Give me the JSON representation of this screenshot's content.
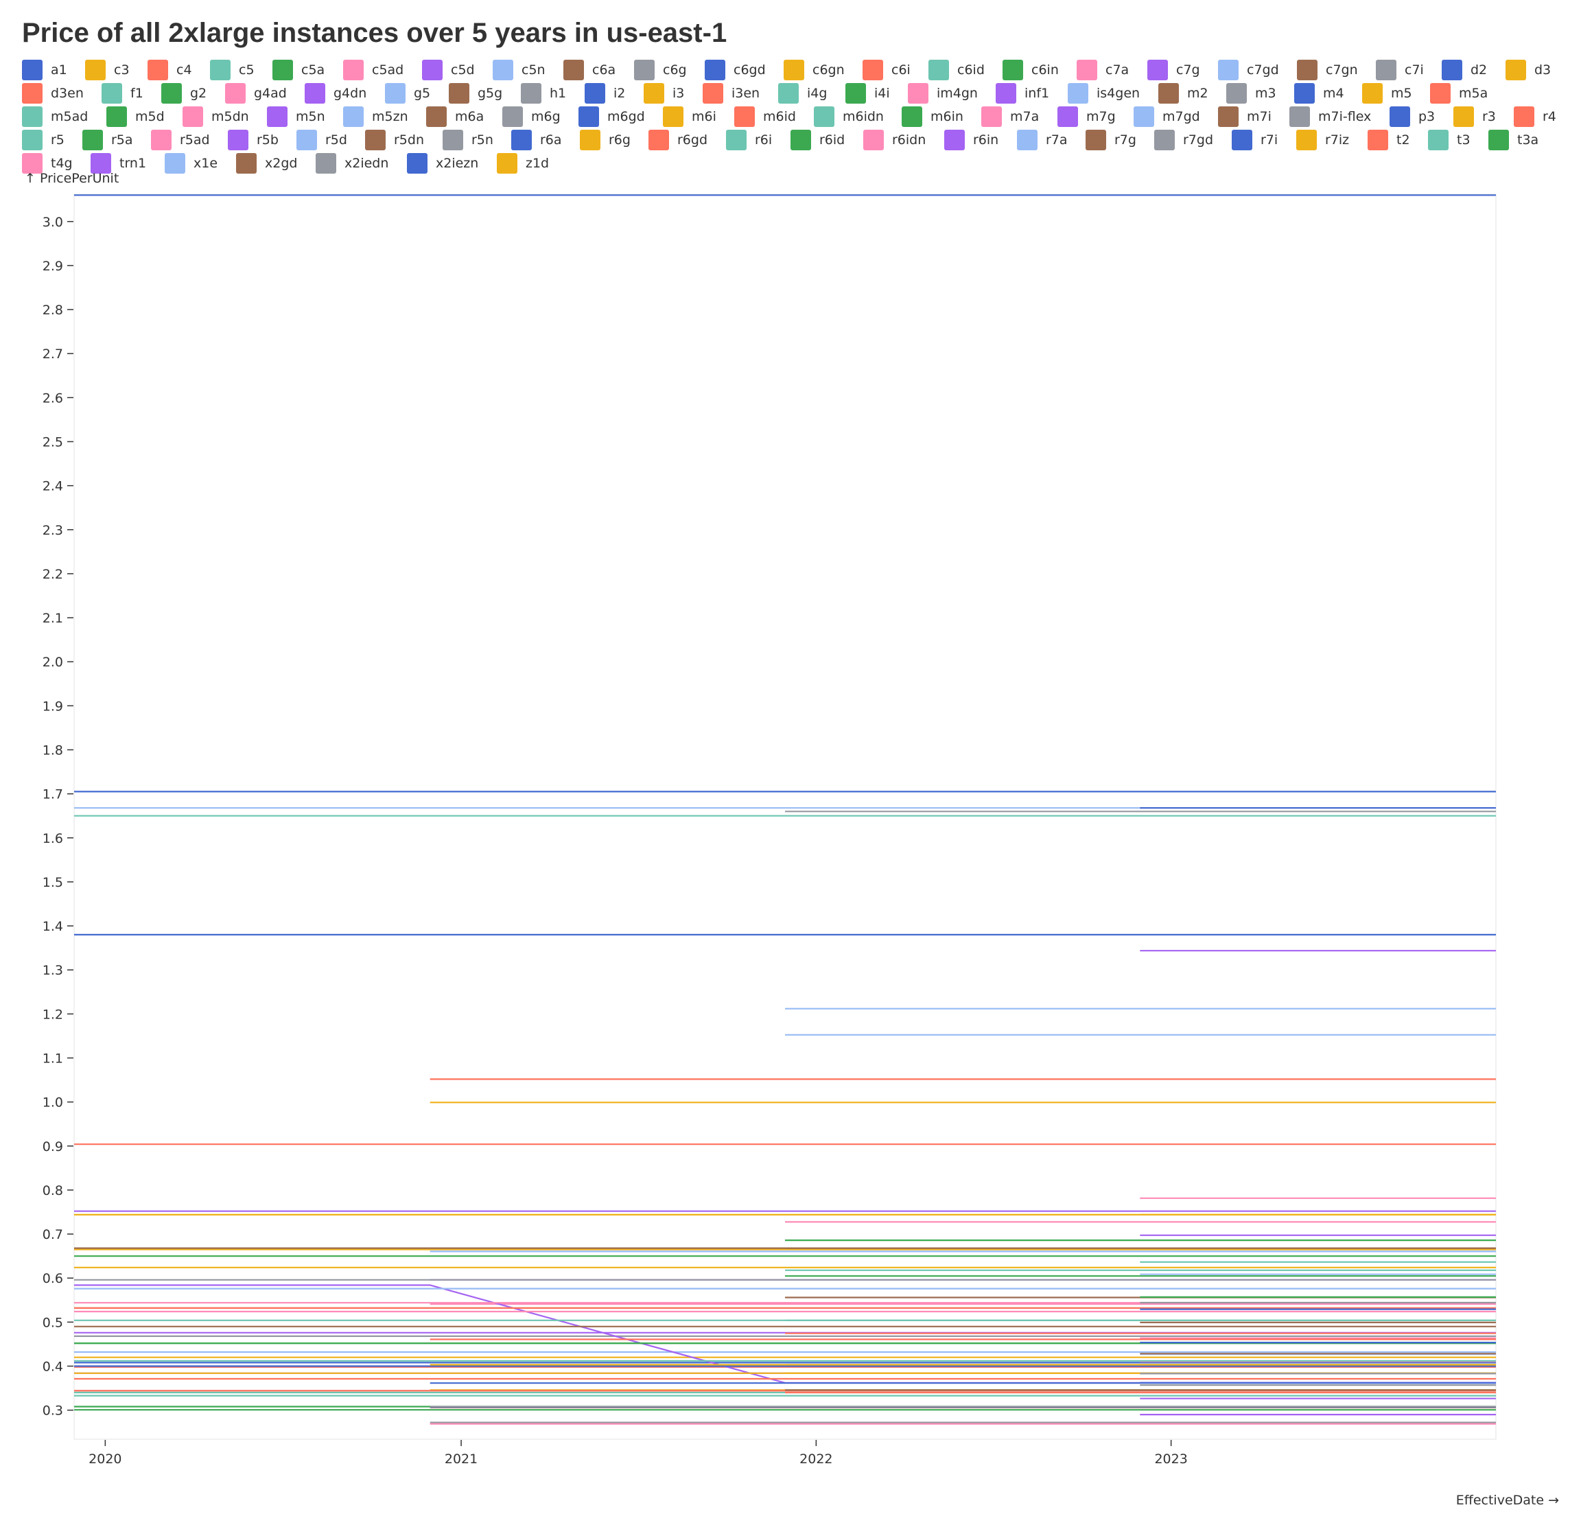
{
  "chart_data": {
    "type": "line",
    "title": "Price of all 2xlarge instances over 5 years in us-east-1",
    "ylabel": "↑ PricePerUnit",
    "xlabel": "EffectiveDate →",
    "x_ticks": [
      "2020",
      "2021",
      "2022",
      "2023"
    ],
    "y_ticks": [
      "3.0",
      "2.9",
      "2.8",
      "2.7",
      "2.6",
      "2.5",
      "2.4",
      "2.3",
      "2.2",
      "2.1",
      "2.0",
      "1.9",
      "1.8",
      "1.7",
      "1.6",
      "1.5",
      "1.4",
      "1.3",
      "1.2",
      "1.1",
      "1.0",
      "0.9",
      "0.8",
      "0.7",
      "0.6",
      "0.5",
      "0.4",
      "0.3"
    ],
    "x_range": [
      "2019-11-30",
      "2023-12-01"
    ],
    "ylim": [
      0.234,
      3.062
    ],
    "grid": false,
    "legend_placement": "top",
    "palette": [
      "#4269d0",
      "#efb118",
      "#ff725c",
      "#6cc5b0",
      "#3ca951",
      "#ff8ab7",
      "#a463f2",
      "#97bbf5",
      "#9c6b4e",
      "#9498a0"
    ],
    "legend": [
      "a1",
      "c3",
      "c4",
      "c5",
      "c5a",
      "c5ad",
      "c5d",
      "c5n",
      "c6a",
      "c6g",
      "c6gd",
      "c6gn",
      "c6i",
      "c6id",
      "c6in",
      "c7a",
      "c7g",
      "c7gd",
      "c7gn",
      "c7i",
      "d2",
      "d3",
      "d3en",
      "f1",
      "g2",
      "g4ad",
      "g4dn",
      "g5",
      "g5g",
      "h1",
      "i2",
      "i3",
      "i3en",
      "i4g",
      "i4i",
      "im4gn",
      "inf1",
      "is4gen",
      "m2",
      "m3",
      "m4",
      "m5",
      "m5a",
      "m5ad",
      "m5d",
      "m5dn",
      "m5n",
      "m5zn",
      "m6a",
      "m6g",
      "m6gd",
      "m6i",
      "m6id",
      "m6idn",
      "m6in",
      "m7a",
      "m7g",
      "m7gd",
      "m7i",
      "m7i-flex",
      "p3",
      "r3",
      "r4",
      "r5",
      "r5a",
      "r5ad",
      "r5b",
      "r5d",
      "r5dn",
      "r5n",
      "r6a",
      "r6g",
      "r6gd",
      "r6i",
      "r6id",
      "r6idn",
      "r6in",
      "r7a",
      "r7g",
      "r7gd",
      "r7i",
      "r7iz",
      "t2",
      "t3",
      "t3a",
      "t4g",
      "trn1",
      "x1e",
      "x2gd",
      "x2iedn",
      "x2iezn",
      "z1d"
    ],
    "series_note": "",
    "series": [
      {
        "name": "a1",
        "x": [
          "2019-11-30",
          "2023-12-01"
        ],
        "y": [
          0.408,
          0.408
        ]
      },
      {
        "name": "c3",
        "x": [
          "2019-11-30",
          "2023-12-01"
        ],
        "y": [
          0.42,
          0.42
        ]
      },
      {
        "name": "c4",
        "x": [
          "2019-11-30",
          "2023-12-01"
        ],
        "y": [
          0.398,
          0.398
        ]
      },
      {
        "name": "c5",
        "x": [
          "2019-11-30",
          "2023-12-01"
        ],
        "y": [
          0.34,
          0.34
        ]
      },
      {
        "name": "c5a",
        "x": [
          "2019-11-30",
          "2023-12-01"
        ],
        "y": [
          0.308,
          0.308
        ]
      },
      {
        "name": "c5ad",
        "x": [
          "2019-11-30",
          "2023-12-01"
        ],
        "y": [
          0.344,
          0.344
        ]
      },
      {
        "name": "c5d",
        "x": [
          "2019-11-30",
          "2023-12-01"
        ],
        "y": [
          0.384,
          0.384
        ]
      },
      {
        "name": "c5n",
        "x": [
          "2019-11-30",
          "2023-12-01"
        ],
        "y": [
          0.432,
          0.432
        ]
      },
      {
        "name": "c6a",
        "x": [
          "2020-11-30",
          "2023-12-01"
        ],
        "y": [
          0.306,
          0.306
        ]
      },
      {
        "name": "c6g",
        "x": [
          "2020-11-30",
          "2023-12-01"
        ],
        "y": [
          0.272,
          0.272
        ]
      },
      {
        "name": "c6gd",
        "x": [
          "2020-11-30",
          "2023-12-01"
        ],
        "y": [
          0.3072,
          0.3072
        ]
      },
      {
        "name": "c6gn",
        "x": [
          "2020-11-30",
          "2023-12-01"
        ],
        "y": [
          0.3456,
          0.3456
        ]
      },
      {
        "name": "c6i",
        "x": [
          "2021-11-30",
          "2023-12-01"
        ],
        "y": [
          0.34,
          0.34
        ]
      },
      {
        "name": "c6id",
        "x": [
          "2021-11-30",
          "2023-12-01"
        ],
        "y": [
          0.4032,
          0.4032
        ]
      },
      {
        "name": "c6in",
        "x": [
          "2022-11-30",
          "2023-12-01"
        ],
        "y": [
          0.4536,
          0.4536
        ]
      },
      {
        "name": "c7a",
        "x": [
          "2022-11-30",
          "2023-12-01"
        ],
        "y": [
          0.41056,
          0.41056
        ]
      },
      {
        "name": "c7g",
        "x": [
          "2022-11-30",
          "2023-12-01"
        ],
        "y": [
          0.29,
          0.29
        ]
      },
      {
        "name": "c7gd",
        "x": [
          "2022-11-30",
          "2023-12-01"
        ],
        "y": [
          0.3629,
          0.3629
        ]
      },
      {
        "name": "c7gn",
        "x": [
          "2022-11-30",
          "2023-12-01"
        ],
        "y": [
          0.4992,
          0.4992
        ]
      },
      {
        "name": "c7i",
        "x": [
          "2022-11-30",
          "2023-12-01"
        ],
        "y": [
          0.357,
          0.357
        ]
      },
      {
        "name": "d2",
        "x": [
          "2019-11-30",
          "2023-12-01"
        ],
        "y": [
          1.38,
          1.38
        ]
      },
      {
        "name": "d3",
        "x": [
          "2020-11-30",
          "2023-12-01"
        ],
        "y": [
          0.999,
          0.999
        ]
      },
      {
        "name": "d3en",
        "x": [
          "2020-11-30",
          "2023-12-01"
        ],
        "y": [
          1.0518,
          1.0518
        ]
      },
      {
        "name": "f1",
        "x": [
          "2019-11-30",
          "2023-12-01"
        ],
        "y": [
          1.65,
          1.65
        ]
      },
      {
        "name": "g2",
        "x": [
          "2019-11-30",
          "2023-12-01"
        ],
        "y": [
          0.65,
          0.65
        ]
      },
      {
        "name": "g4ad",
        "x": [
          "2020-11-30",
          "2023-12-01"
        ],
        "y": [
          0.541,
          0.541
        ]
      },
      {
        "name": "g4dn",
        "x": [
          "2019-11-30",
          "2023-12-01"
        ],
        "y": [
          0.752,
          0.752
        ]
      },
      {
        "name": "g5",
        "x": [
          "2021-11-30",
          "2023-12-01"
        ],
        "y": [
          1.212,
          1.212
        ]
      },
      {
        "name": "g5g",
        "x": [
          "2021-11-30",
          "2023-12-01"
        ],
        "y": [
          0.556,
          0.556
        ]
      },
      {
        "name": "h1",
        "x": [
          "2019-11-30",
          "2023-12-01"
        ],
        "y": [
          0.468,
          0.468
        ]
      },
      {
        "name": "i2",
        "x": [
          "2019-11-30",
          "2023-12-01"
        ],
        "y": [
          1.705,
          1.705
        ]
      },
      {
        "name": "i3",
        "x": [
          "2019-11-30",
          "2023-12-01"
        ],
        "y": [
          0.624,
          0.624
        ]
      },
      {
        "name": "i3en",
        "x": [
          "2019-11-30",
          "2023-12-01"
        ],
        "y": [
          0.904,
          0.904
        ]
      },
      {
        "name": "i4g",
        "x": [
          "2021-11-30",
          "2023-12-01"
        ],
        "y": [
          0.6178,
          0.6178
        ]
      },
      {
        "name": "i4i",
        "x": [
          "2021-11-30",
          "2023-12-01"
        ],
        "y": [
          0.686,
          0.686
        ]
      },
      {
        "name": "im4gn",
        "x": [
          "2021-11-30",
          "2023-12-01"
        ],
        "y": [
          0.7276,
          0.7276
        ]
      },
      {
        "name": "inf1",
        "x": [
          "2019-11-30",
          "2020-11-30",
          "2021-11-30",
          "2023-12-01"
        ],
        "y": [
          0.584,
          0.584,
          0.362,
          0.362
        ]
      },
      {
        "name": "is4gen",
        "x": [
          "2021-11-30",
          "2023-12-01"
        ],
        "y": [
          1.1526,
          1.1526
        ]
      },
      {
        "name": "m2",
        "x": [
          "2019-11-30",
          "2023-12-01"
        ],
        "y": [
          0.49,
          0.49
        ]
      },
      {
        "name": "m3",
        "x": [
          "2019-11-30",
          "2023-12-01"
        ],
        "y": [
          0.532,
          0.532
        ]
      },
      {
        "name": "m4",
        "x": [
          "2019-11-30",
          "2023-12-01"
        ],
        "y": [
          0.4,
          0.4
        ]
      },
      {
        "name": "m5",
        "x": [
          "2019-11-30",
          "2023-12-01"
        ],
        "y": [
          0.384,
          0.384
        ]
      },
      {
        "name": "m5a",
        "x": [
          "2019-11-30",
          "2023-12-01"
        ],
        "y": [
          0.344,
          0.344
        ]
      },
      {
        "name": "m5ad",
        "x": [
          "2019-11-30",
          "2023-12-01"
        ],
        "y": [
          0.412,
          0.412
        ]
      },
      {
        "name": "m5d",
        "x": [
          "2019-11-30",
          "2023-12-01"
        ],
        "y": [
          0.452,
          0.452
        ]
      },
      {
        "name": "m5dn",
        "x": [
          "2019-11-30",
          "2023-12-01"
        ],
        "y": [
          0.544,
          0.544
        ]
      },
      {
        "name": "m5n",
        "x": [
          "2019-11-30",
          "2023-12-01"
        ],
        "y": [
          0.476,
          0.476
        ]
      },
      {
        "name": "m5zn",
        "x": [
          "2020-11-30",
          "2023-12-01"
        ],
        "y": [
          0.6606,
          0.6606
        ]
      },
      {
        "name": "m6a",
        "x": [
          "2021-11-30",
          "2023-12-01"
        ],
        "y": [
          0.3456,
          0.3456
        ]
      },
      {
        "name": "m6g",
        "x": [
          "2020-11-30",
          "2023-12-01"
        ],
        "y": [
          0.308,
          0.308
        ]
      },
      {
        "name": "m6gd",
        "x": [
          "2020-11-30",
          "2023-12-01"
        ],
        "y": [
          0.3616,
          0.3616
        ]
      },
      {
        "name": "m6i",
        "x": [
          "2021-11-30",
          "2023-12-01"
        ],
        "y": [
          0.384,
          0.384
        ]
      },
      {
        "name": "m6id",
        "x": [
          "2021-11-30",
          "2023-12-01"
        ],
        "y": [
          0.4746,
          0.4746
        ]
      },
      {
        "name": "m6idn",
        "x": [
          "2022-11-30",
          "2023-12-01"
        ],
        "y": [
          0.6365,
          0.6365
        ]
      },
      {
        "name": "m6in",
        "x": [
          "2022-11-30",
          "2023-12-01"
        ],
        "y": [
          0.5569,
          0.5569
        ]
      },
      {
        "name": "m7a",
        "x": [
          "2022-11-30",
          "2023-12-01"
        ],
        "y": [
          0.4637,
          0.4637
        ]
      },
      {
        "name": "m7g",
        "x": [
          "2022-11-30",
          "2023-12-01"
        ],
        "y": [
          0.3264,
          0.3264
        ]
      },
      {
        "name": "m7gd",
        "x": [
          "2022-11-30",
          "2023-12-01"
        ],
        "y": [
          0.427,
          0.427
        ]
      },
      {
        "name": "m7i",
        "x": [
          "2022-11-30",
          "2023-12-01"
        ],
        "y": [
          0.4032,
          0.4032
        ]
      },
      {
        "name": "m7i-flex",
        "x": [
          "2022-11-30",
          "2023-12-01"
        ],
        "y": [
          0.383,
          0.383
        ]
      },
      {
        "name": "p3",
        "x": [
          "2019-11-30",
          "2023-12-01"
        ],
        "y": [
          3.06,
          3.06
        ]
      },
      {
        "name": "r3",
        "x": [
          "2019-11-30",
          "2023-12-01"
        ],
        "y": [
          0.665,
          0.665
        ]
      },
      {
        "name": "r4",
        "x": [
          "2019-11-30",
          "2023-12-01"
        ],
        "y": [
          0.532,
          0.532
        ]
      },
      {
        "name": "r5",
        "x": [
          "2019-11-30",
          "2023-12-01"
        ],
        "y": [
          0.504,
          0.504
        ]
      },
      {
        "name": "r5a",
        "x": [
          "2019-11-30",
          "2023-12-01"
        ],
        "y": [
          0.452,
          0.452
        ]
      },
      {
        "name": "r5ad",
        "x": [
          "2019-11-30",
          "2023-12-01"
        ],
        "y": [
          0.524,
          0.524
        ]
      },
      {
        "name": "r5b",
        "x": [
          "2020-11-30",
          "2023-12-01"
        ],
        "y": [
          0.596,
          0.596
        ]
      },
      {
        "name": "r5d",
        "x": [
          "2019-11-30",
          "2023-12-01"
        ],
        "y": [
          0.576,
          0.576
        ]
      },
      {
        "name": "r5dn",
        "x": [
          "2019-11-30",
          "2023-12-01"
        ],
        "y": [
          0.668,
          0.668
        ]
      },
      {
        "name": "r5n",
        "x": [
          "2019-11-30",
          "2023-12-01"
        ],
        "y": [
          0.596,
          0.596
        ]
      },
      {
        "name": "r6a",
        "x": [
          "2022-11-30",
          "2023-12-01"
        ],
        "y": [
          0.4536,
          0.4536
        ]
      },
      {
        "name": "r6g",
        "x": [
          "2020-11-30",
          "2023-12-01"
        ],
        "y": [
          0.4032,
          0.4032
        ]
      },
      {
        "name": "r6gd",
        "x": [
          "2020-11-30",
          "2023-12-01"
        ],
        "y": [
          0.4608,
          0.4608
        ]
      },
      {
        "name": "r6i",
        "x": [
          "2021-11-30",
          "2023-12-01"
        ],
        "y": [
          0.504,
          0.504
        ]
      },
      {
        "name": "r6id",
        "x": [
          "2021-11-30",
          "2023-12-01"
        ],
        "y": [
          0.6048,
          0.6048
        ]
      },
      {
        "name": "r6idn",
        "x": [
          "2022-11-30",
          "2023-12-01"
        ],
        "y": [
          0.7815,
          0.7815
        ]
      },
      {
        "name": "r6in",
        "x": [
          "2022-11-30",
          "2023-12-01"
        ],
        "y": [
          0.6974,
          0.6974
        ]
      },
      {
        "name": "r7a",
        "x": [
          "2022-11-30",
          "2023-12-01"
        ],
        "y": [
          0.6086,
          0.6086
        ]
      },
      {
        "name": "r7g",
        "x": [
          "2022-11-30",
          "2023-12-01"
        ],
        "y": [
          0.4284,
          0.4284
        ]
      },
      {
        "name": "r7gd",
        "x": [
          "2022-11-30",
          "2023-12-01"
        ],
        "y": [
          0.5443,
          0.5443
        ]
      },
      {
        "name": "r7i",
        "x": [
          "2022-11-30",
          "2023-12-01"
        ],
        "y": [
          0.5292,
          0.5292
        ]
      },
      {
        "name": "r7iz",
        "x": [
          "2022-11-30",
          "2023-12-01"
        ],
        "y": [
          0.744,
          0.744
        ]
      },
      {
        "name": "t2",
        "x": [
          "2019-11-30",
          "2023-12-01"
        ],
        "y": [
          0.3712,
          0.3712
        ]
      },
      {
        "name": "t3",
        "x": [
          "2019-11-30",
          "2023-12-01"
        ],
        "y": [
          0.3328,
          0.3328
        ]
      },
      {
        "name": "t3a",
        "x": [
          "2019-11-30",
          "2023-12-01"
        ],
        "y": [
          0.3008,
          0.3008
        ]
      },
      {
        "name": "t4g",
        "x": [
          "2020-11-30",
          "2023-12-01"
        ],
        "y": [
          0.2688,
          0.2688
        ]
      },
      {
        "name": "trn1",
        "x": [
          "2022-11-30",
          "2023-12-01"
        ],
        "y": [
          1.34375,
          1.34375
        ]
      },
      {
        "name": "x1e",
        "x": [
          "2019-11-30",
          "2023-12-01"
        ],
        "y": [
          1.668,
          1.668
        ]
      },
      {
        "name": "x2gd",
        "x": [
          "2021-11-30",
          "2023-12-01"
        ],
        "y": [
          0.668,
          0.668
        ]
      },
      {
        "name": "x2iedn",
        "x": [
          "2021-11-30",
          "2023-12-01"
        ],
        "y": [
          1.66,
          1.66
        ]
      },
      {
        "name": "x2iezn",
        "x": [
          "2022-11-30",
          "2023-12-01"
        ],
        "y": [
          1.668,
          1.668
        ]
      },
      {
        "name": "z1d",
        "x": [
          "2019-11-30",
          "2023-12-01"
        ],
        "y": [
          0.744,
          0.744
        ]
      }
    ]
  }
}
